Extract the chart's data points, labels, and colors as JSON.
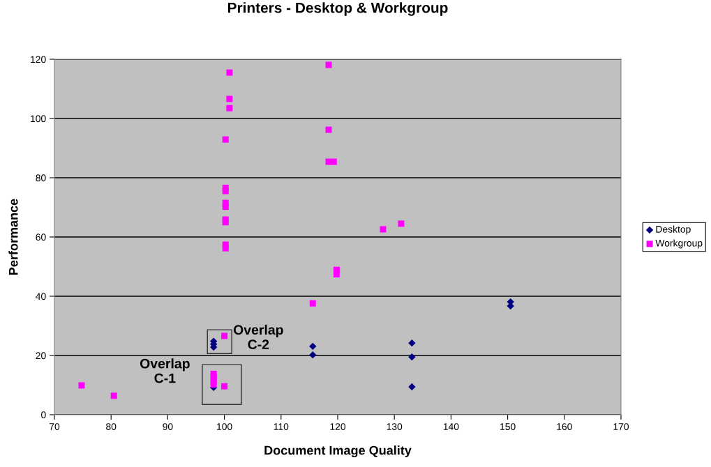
{
  "chart_data": {
    "type": "scatter",
    "title": "Printers - Desktop & Workgroup",
    "xlabel": "Document Image Quality",
    "ylabel": "Performance",
    "xlim": [
      70,
      170
    ],
    "xticks": [
      70,
      80,
      90,
      100,
      110,
      120,
      130,
      140,
      150,
      160,
      170
    ],
    "ylim": [
      0,
      120
    ],
    "yticks": [
      0,
      20,
      40,
      60,
      80,
      100,
      120
    ],
    "grid": "y",
    "legend": "right",
    "series": [
      {
        "name": "Desktop",
        "color": "#000080",
        "marker": "diamond",
        "x": [
          98.1,
          98.1,
          98.1,
          98.1,
          115.6,
          115.6,
          133.1,
          133.1,
          133.1,
          150.5,
          150.5
        ],
        "values": [
          9.2,
          24.8,
          23.8,
          22.8,
          23.1,
          20.2,
          24.2,
          19.5,
          9.4,
          38.1,
          36.7
        ]
      },
      {
        "name": "Workgroup",
        "color": "#ff00ff",
        "marker": "square",
        "x": [
          74.8,
          80.5,
          100.0,
          100.0,
          98.1,
          98.1,
          98.1,
          98.1,
          118.4,
          100.9,
          100.9,
          100.9,
          118.4,
          100.2,
          118.4,
          119.3,
          100.2,
          100.2,
          100.2,
          100.2,
          100.2,
          100.2,
          100.2,
          100.2,
          128.0,
          131.2,
          119.8,
          119.8,
          115.6
        ],
        "values": [
          9.9,
          6.4,
          26.6,
          9.6,
          13.8,
          12.6,
          11.4,
          10.2,
          118.1,
          115.5,
          106.6,
          103.5,
          96.2,
          92.9,
          85.4,
          85.4,
          76.6,
          75.5,
          71.5,
          70.2,
          65.9,
          65.0,
          57.4,
          56.2,
          62.6,
          64.5,
          48.9,
          47.4,
          37.6
        ]
      }
    ],
    "annotations": [
      "Overlap\nC-1",
      "Overlap\nC-2"
    ]
  }
}
